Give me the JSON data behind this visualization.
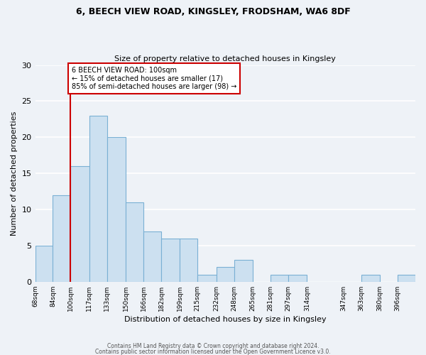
{
  "title1": "6, BEECH VIEW ROAD, KINGSLEY, FRODSHAM, WA6 8DF",
  "title2": "Size of property relative to detached houses in Kingsley",
  "xlabel": "Distribution of detached houses by size in Kingsley",
  "ylabel": "Number of detached properties",
  "bar_color": "#cce0f0",
  "bar_edge_color": "#7ab0d4",
  "vline_color": "#cc0000",
  "annotation_text": "6 BEECH VIEW ROAD: 100sqm\n← 15% of detached houses are smaller (17)\n85% of semi-detached houses are larger (98) →",
  "annotation_box_color": "white",
  "annotation_box_edge": "#cc0000",
  "bins": [
    68,
    84,
    100,
    117,
    133,
    150,
    166,
    182,
    199,
    215,
    232,
    248,
    265,
    281,
    297,
    314,
    347,
    363,
    380,
    396,
    412
  ],
  "counts": [
    5,
    12,
    16,
    23,
    20,
    11,
    7,
    6,
    6,
    1,
    2,
    3,
    0,
    1,
    1,
    0,
    0,
    1,
    0,
    1
  ],
  "tick_labels": [
    "68sqm",
    "84sqm",
    "100sqm",
    "117sqm",
    "133sqm",
    "150sqm",
    "166sqm",
    "182sqm",
    "199sqm",
    "215sqm",
    "232sqm",
    "248sqm",
    "265sqm",
    "281sqm",
    "297sqm",
    "314sqm",
    "347sqm",
    "363sqm",
    "380sqm",
    "396sqm"
  ],
  "ylim": [
    0,
    30
  ],
  "yticks": [
    0,
    5,
    10,
    15,
    20,
    25,
    30
  ],
  "footer1": "Contains HM Land Registry data © Crown copyright and database right 2024.",
  "footer2": "Contains public sector information licensed under the Open Government Licence v3.0.",
  "bg_color": "#eef2f7",
  "grid_color": "#ffffff"
}
